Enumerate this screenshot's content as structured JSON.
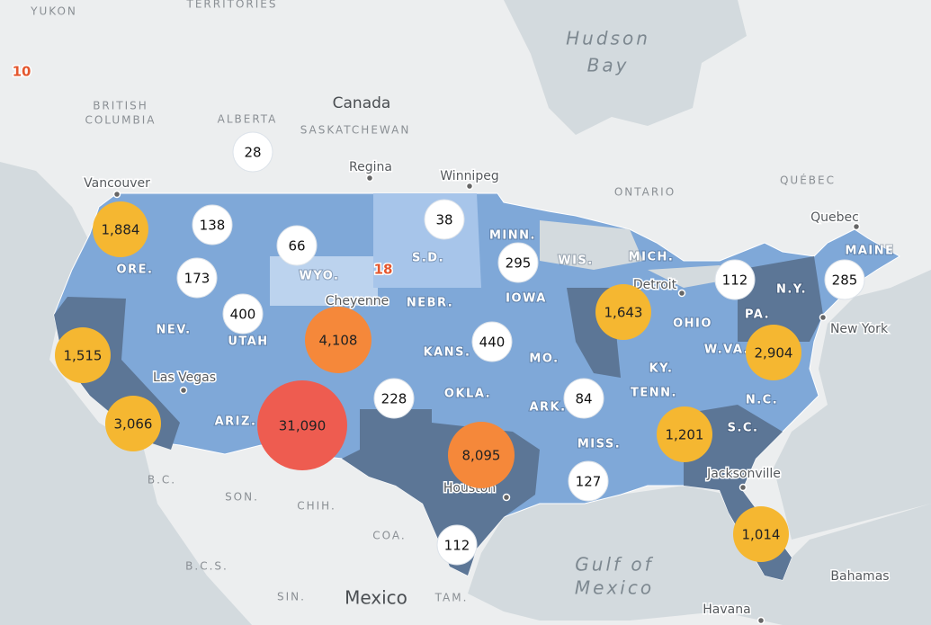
{
  "places": [
    "YUKON",
    "TERRITORIES",
    "Hudson",
    "Bay",
    "BRITISH",
    "COLUMBIA",
    "ALBERTA",
    "Canada",
    "SASKATCHEWAN",
    "Regina",
    "Winnipeg",
    "Vancouver",
    "ONTARIO",
    "QUÉBEC",
    "Quebec",
    "ORE.",
    "WYO.",
    "Cheyenne",
    "NEBR.",
    "S.D.",
    "MINN.",
    "WIS.",
    "MICH.",
    "IOWA",
    "Detroit",
    "N.Y.",
    "MAINE",
    "PA.",
    "OHIO",
    "New York",
    "NEV.",
    "UTAH",
    "KANS.",
    "MO.",
    "W.VA.",
    "KY.",
    "Las Vegas",
    "ARIZ.",
    "OKLA.",
    "ARK.",
    "TENN.",
    "N.C.",
    "S.C.",
    "MISS.",
    "Houston",
    "Jacksonville",
    "B.C.",
    "SON.",
    "CHIH.",
    "COA.",
    "B.C.S.",
    "SIN.",
    "Mexico",
    "TAM.",
    "Gulf of",
    "Mexico",
    "Bahamas",
    "Havana"
  ],
  "markers": [
    {
      "value": 10,
      "label": "10",
      "fill": null,
      "text_color": "#e4572e"
    },
    {
      "value": 28,
      "label": "28",
      "fill": "#ffffff",
      "text_color": "#111111"
    },
    {
      "value": 1884,
      "label": "1,884",
      "fill": "#f5b731",
      "text_color": "#222222"
    },
    {
      "value": 138,
      "label": "138",
      "fill": "#ffffff",
      "text_color": "#111111"
    },
    {
      "value": 66,
      "label": "66",
      "fill": "#ffffff",
      "text_color": "#111111"
    },
    {
      "value": 38,
      "label": "38",
      "fill": "#ffffff",
      "text_color": "#111111"
    },
    {
      "value": 18,
      "label": "18",
      "fill": null,
      "text_color": "#e4572e"
    },
    {
      "value": 295,
      "label": "295",
      "fill": "#ffffff",
      "text_color": "#111111"
    },
    {
      "value": 112,
      "label": "112",
      "fill": "#ffffff",
      "text_color": "#111111"
    },
    {
      "value": 285,
      "label": "285",
      "fill": "#ffffff",
      "text_color": "#111111"
    },
    {
      "value": 173,
      "label": "173",
      "fill": "#ffffff",
      "text_color": "#111111"
    },
    {
      "value": 400,
      "label": "400",
      "fill": "#ffffff",
      "text_color": "#111111"
    },
    {
      "value": 4108,
      "label": "4,108",
      "fill": "#f5883a",
      "text_color": "#222222"
    },
    {
      "value": 1643,
      "label": "1,643",
      "fill": "#f5b731",
      "text_color": "#222222"
    },
    {
      "value": 440,
      "label": "440",
      "fill": "#ffffff",
      "text_color": "#111111"
    },
    {
      "value": 2904,
      "label": "2,904",
      "fill": "#f5b731",
      "text_color": "#222222"
    },
    {
      "value": 1515,
      "label": "1,515",
      "fill": "#f5b731",
      "text_color": "#222222"
    },
    {
      "value": 228,
      "label": "228",
      "fill": "#ffffff",
      "text_color": "#111111"
    },
    {
      "value": 84,
      "label": "84",
      "fill": "#ffffff",
      "text_color": "#111111"
    },
    {
      "value": 31090,
      "label": "31,090",
      "fill": "#ee5c50",
      "text_color": "#222222"
    },
    {
      "value": 3066,
      "label": "3,066",
      "fill": "#f5b731",
      "text_color": "#222222"
    },
    {
      "value": 8095,
      "label": "8,095",
      "fill": "#f5883a",
      "text_color": "#222222"
    },
    {
      "value": 1201,
      "label": "1,201",
      "fill": "#f5b731",
      "text_color": "#222222"
    },
    {
      "value": 127,
      "label": "127",
      "fill": "#ffffff",
      "text_color": "#111111"
    },
    {
      "value": 1014,
      "label": "1,014",
      "fill": "#f5b731",
      "text_color": "#222222"
    },
    {
      "value": 112,
      "label": "112",
      "fill": "#ffffff",
      "text_color": "#111111"
    }
  ]
}
